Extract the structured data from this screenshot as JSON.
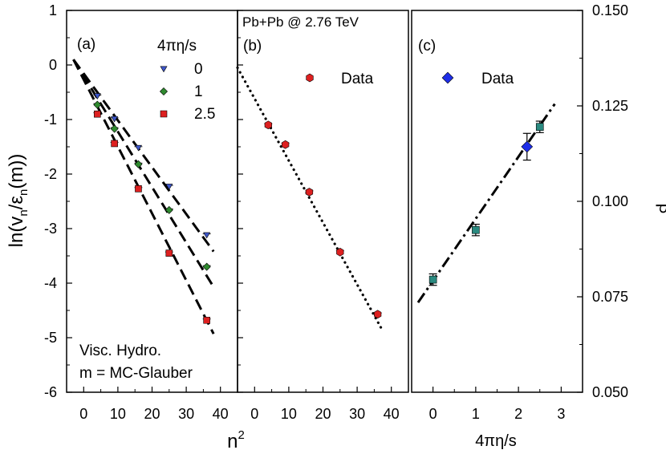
{
  "chart_data": [
    {
      "panel_label": "(a)",
      "type": "scatter",
      "xlabel": "n",
      "xlabel_sup": "2",
      "ylabel": "ln(v",
      "ylabel_parts": [
        "ln(v",
        "n",
        "/ε",
        "n",
        "(m))"
      ],
      "xlim": [
        -5,
        45
      ],
      "ylim": [
        -6,
        1
      ],
      "xticks": [
        0,
        10,
        20,
        30,
        40
      ],
      "yticks": [
        1,
        0,
        -1,
        -2,
        -3,
        -4,
        -5,
        -6
      ],
      "legend_title": "4πη/s",
      "annotations": [
        "Visc. Hydro.",
        "m = MC-Glauber"
      ],
      "series": [
        {
          "name": "0",
          "marker": "triangle-down",
          "color": "#3d56c8",
          "x": [
            4,
            9,
            16,
            25,
            36
          ],
          "y": [
            -0.57,
            -0.99,
            -1.52,
            -2.23,
            -3.12
          ],
          "fit": {
            "x": [
              -3,
              38
            ],
            "y": [
              0.1,
              -3.42
            ]
          }
        },
        {
          "name": "1",
          "marker": "diamond",
          "color": "#2f8a2f",
          "x": [
            4,
            9,
            16,
            25,
            36
          ],
          "y": [
            -0.73,
            -1.17,
            -1.82,
            -2.66,
            -3.7
          ],
          "fit": {
            "x": [
              -3,
              38
            ],
            "y": [
              0.1,
              -4.07
            ]
          }
        },
        {
          "name": "2.5",
          "marker": "square",
          "color": "#dd2020",
          "x": [
            4,
            9,
            16,
            25,
            36
          ],
          "y": [
            -0.9,
            -1.44,
            -2.27,
            -3.45,
            -4.68
          ],
          "fit": {
            "x": [
              -3,
              38
            ],
            "y": [
              0.1,
              -4.93
            ]
          }
        }
      ]
    },
    {
      "panel_label": "(b)",
      "type": "scatter",
      "title": "Pb+Pb @ 2.76 TeV",
      "xlim": [
        -5,
        45
      ],
      "ylim": [
        -6,
        1
      ],
      "xticks": [
        0,
        10,
        20,
        30,
        40
      ],
      "series": [
        {
          "name": "Data",
          "marker": "hexagon",
          "color": "#dd2020",
          "x": [
            4,
            9,
            16,
            25,
            36
          ],
          "y": [
            -1.1,
            -1.46,
            -2.33,
            -3.43,
            -4.57
          ],
          "fit": {
            "x": [
              -5,
              37
            ],
            "y": [
              -0.05,
              -4.82
            ]
          }
        }
      ]
    },
    {
      "panel_label": "(c)",
      "type": "scatter",
      "xlabel": "4πη/s",
      "ylabel": "β'",
      "xlim": [
        -0.5,
        3.5
      ],
      "ylim": [
        0.05,
        0.15
      ],
      "xticks": [
        0,
        1,
        2,
        3
      ],
      "yticks": [
        "0.150",
        "0.125",
        "0.100",
        "0.075",
        "0.050"
      ],
      "ytick_values": [
        0.15,
        0.125,
        0.1,
        0.075,
        0.05
      ],
      "series": [
        {
          "name": "",
          "marker": "square",
          "color": "#2a8a80",
          "x": [
            0,
            1,
            2.5
          ],
          "y": [
            0.0795,
            0.0925,
            0.1195
          ],
          "yerr": [
            0.0015,
            0.0015,
            0.0015
          ]
        },
        {
          "name": "Data",
          "marker": "diamond",
          "color": "#1e2ee8",
          "x": [
            2.2
          ],
          "y": [
            0.1143
          ],
          "yerr": [
            0.0035
          ]
        }
      ],
      "fit": {
        "x": [
          -0.35,
          2.85
        ],
        "y": [
          0.0735,
          0.1255
        ]
      }
    }
  ]
}
